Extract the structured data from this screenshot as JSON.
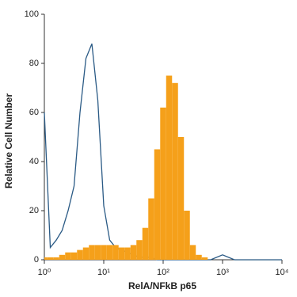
{
  "chart_data": {
    "type": "line",
    "xlabel": "RelA/NFkB p65",
    "ylabel": "Relative Cell Number",
    "x": [
      1,
      1.259,
      1.585,
      1.995,
      2.512,
      3.162,
      3.981,
      5.012,
      6.31,
      7.943,
      10,
      12.59,
      15.85,
      19.95,
      25.12,
      31.62,
      39.81,
      50.12,
      63.1,
      79.43,
      100,
      125.9,
      158.5,
      199.5,
      251.2,
      316.2,
      398.1,
      501.2,
      631,
      794.3,
      1000,
      1259,
      1585,
      1995,
      2512,
      3162,
      3981,
      5012,
      6310,
      7943,
      10000
    ],
    "log_x": true,
    "xlim": [
      1,
      10000
    ],
    "xticks": [
      {
        "value": 1,
        "label": "10⁰"
      },
      {
        "value": 10,
        "label": "10¹"
      },
      {
        "value": 100,
        "label": "10²"
      },
      {
        "value": 1000,
        "label": "10³"
      },
      {
        "value": 10000,
        "label": "10⁴"
      }
    ],
    "ylim": [
      0,
      100
    ],
    "yticks": [
      0,
      20,
      40,
      60,
      80,
      100
    ],
    "series": [
      {
        "style": "outline",
        "color": "#2a5a85",
        "values": [
          60,
          5,
          8,
          12,
          20,
          30,
          60,
          82,
          88,
          65,
          22,
          8,
          5,
          4,
          3,
          2,
          1,
          1,
          1,
          0,
          0,
          0,
          0,
          0,
          0,
          0,
          0,
          0,
          0,
          1,
          2,
          1,
          0,
          0,
          0,
          0,
          0,
          0,
          0,
          0,
          0
        ]
      },
      {
        "style": "filled",
        "color": "#f5a01a",
        "values": [
          1,
          1,
          1,
          2,
          3,
          3,
          4,
          5,
          6,
          6,
          6,
          6,
          6,
          5,
          5,
          6,
          8,
          13,
          25,
          45,
          62,
          75,
          72,
          50,
          20,
          6,
          2,
          1,
          0,
          0,
          0,
          0,
          0,
          0,
          0,
          0,
          0,
          0,
          0,
          0,
          0
        ]
      }
    ]
  }
}
